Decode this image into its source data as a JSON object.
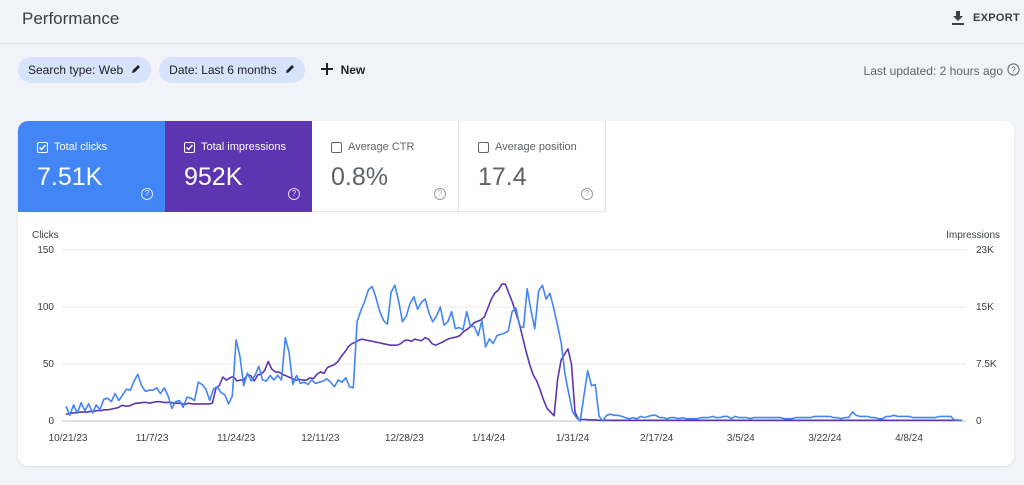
{
  "header": {
    "title": "Performance",
    "export_label": "EXPORT"
  },
  "filters": {
    "search_type": "Search type: Web",
    "date": "Date: Last 6 months",
    "new_label": "New"
  },
  "last_updated": "Last updated: 2 hours ago",
  "metrics": [
    {
      "label": "Total clicks",
      "value": "7.51K",
      "checked": true
    },
    {
      "label": "Total impressions",
      "value": "952K",
      "checked": true
    },
    {
      "label": "Average CTR",
      "value": "0.8%",
      "checked": false
    },
    {
      "label": "Average position",
      "value": "17.4",
      "checked": false
    }
  ],
  "colors": {
    "clicks": "#4285f4",
    "impressions": "#5e35b1",
    "chip": "#d7e3fb"
  },
  "chart_data": {
    "type": "line",
    "left_axis_label": "Clicks",
    "right_axis_label": "Impressions",
    "left_ticks": [
      "150",
      "100",
      "50",
      "0"
    ],
    "right_ticks": [
      "23K",
      "15K",
      "7.5K",
      "0"
    ],
    "left_range": [
      0,
      150
    ],
    "right_range": [
      0,
      23000
    ],
    "x_ticks": [
      "10/21/23",
      "11/7/23",
      "11/24/23",
      "12/11/23",
      "12/28/23",
      "1/14/24",
      "1/31/24",
      "2/17/24",
      "3/5/24",
      "3/22/24",
      "4/8/24"
    ],
    "grid": true,
    "series": [
      {
        "name": "Total clicks",
        "axis": "left",
        "values": [
          13,
          5,
          14,
          7,
          16,
          9,
          15,
          7,
          14,
          10,
          19,
          20,
          17,
          24,
          18,
          23,
          28,
          27,
          35,
          41,
          31,
          26,
          27,
          27,
          29,
          24,
          29,
          22,
          11,
          17,
          18,
          12,
          21,
          20,
          18,
          34,
          32,
          28,
          18,
          28,
          30,
          25,
          23,
          15,
          22,
          71,
          57,
          31,
          42,
          35,
          40,
          48,
          36,
          35,
          40,
          36,
          40,
          36,
          73,
          60,
          32,
          40,
          33,
          34,
          32,
          36,
          33,
          34,
          35,
          37,
          34,
          30,
          36,
          34,
          38,
          30,
          29,
          87,
          97,
          105,
          115,
          118,
          108,
          96,
          88,
          85,
          113,
          119,
          105,
          87,
          92,
          103,
          109,
          98,
          104,
          107,
          95,
          87,
          92,
          100,
          84,
          87,
          96,
          81,
          82,
          80,
          96,
          83,
          83,
          75,
          88,
          65,
          72,
          68,
          75,
          76,
          77,
          79,
          96,
          99,
          83,
          82,
          116,
          97,
          81,
          114,
          119,
          107,
          112,
          99,
          84,
          68,
          41,
          24,
          8,
          3,
          0,
          22,
          44,
          31,
          32,
          4,
          0,
          5,
          6,
          5,
          5,
          4,
          3,
          2,
          3,
          2,
          4,
          3,
          4,
          5,
          5,
          3,
          3,
          2,
          3,
          3,
          2,
          3,
          2,
          2,
          2,
          2,
          3,
          3,
          3,
          4,
          3,
          3,
          4,
          4,
          2,
          4,
          3,
          3,
          3,
          2,
          3,
          3,
          3,
          3,
          3,
          3,
          3,
          3,
          2,
          2,
          2,
          3,
          3,
          3,
          3,
          3,
          4,
          4,
          4,
          4,
          4,
          3,
          3,
          2,
          3,
          3,
          8,
          5,
          4,
          4,
          4,
          3,
          3,
          2,
          2,
          4,
          4,
          5,
          4,
          4,
          4,
          4,
          3,
          3,
          3,
          3,
          3,
          3,
          3,
          4,
          4,
          4,
          4,
          1,
          1,
          0
        ]
      },
      {
        "name": "Total impressions",
        "axis": "right",
        "values": [
          900,
          1000,
          1100,
          1100,
          1200,
          1200,
          1200,
          1300,
          1300,
          1400,
          1400,
          1500,
          1500,
          1600,
          1700,
          1800,
          2100,
          2000,
          2000,
          2200,
          2400,
          2400,
          2500,
          2500,
          2400,
          2500,
          2600,
          2600,
          2500,
          2500,
          2500,
          2400,
          2400,
          2400,
          2200,
          2400,
          2300,
          2300,
          2300,
          2300,
          2300,
          2300,
          2400,
          4400,
          4800,
          5900,
          5500,
          5800,
          6000,
          5400,
          5500,
          5500,
          6200,
          6100,
          5400,
          6200,
          6300,
          6800,
          8000,
          7000,
          6600,
          6600,
          6300,
          6100,
          5900,
          5700,
          5500,
          5600,
          5500,
          5500,
          5800,
          5700,
          6300,
          6600,
          6400,
          7200,
          7400,
          7600,
          8000,
          8700,
          9300,
          10000,
          10400,
          10600,
          10900,
          11000,
          10900,
          10800,
          10700,
          10600,
          10500,
          10400,
          10300,
          10200,
          10200,
          10200,
          10400,
          10800,
          10900,
          10700,
          11000,
          10900,
          10800,
          11200,
          11000,
          10400,
          10200,
          10400,
          10600,
          10900,
          11100,
          11200,
          11300,
          11500,
          12000,
          12300,
          12700,
          13200,
          13400,
          13600,
          14000,
          15200,
          16400,
          17200,
          17600,
          18400,
          18400,
          17200,
          16000,
          14600,
          13200,
          11200,
          9300,
          7600,
          6200,
          5400,
          4200,
          2800,
          1700,
          1200,
          700,
          5600,
          8200,
          9000,
          9700,
          7600,
          1200,
          200,
          200,
          200,
          150,
          150,
          150,
          100,
          100,
          100,
          100,
          100,
          100,
          100,
          100,
          100,
          100,
          100,
          100,
          100,
          100,
          100,
          100,
          100,
          100,
          100,
          100,
          100,
          100,
          100,
          100,
          100,
          100,
          100,
          100,
          100,
          100,
          100,
          100,
          100,
          100,
          100,
          100,
          100,
          100,
          100,
          100,
          100,
          100,
          100,
          100,
          100,
          100,
          100,
          100,
          100,
          100,
          100,
          100,
          100,
          100,
          100,
          100,
          100,
          100,
          100,
          100,
          100,
          100,
          100,
          100,
          100,
          100,
          100,
          100,
          100,
          100,
          100,
          100,
          100,
          100,
          100,
          100,
          100,
          100,
          100,
          100,
          100,
          100,
          100,
          100,
          100,
          100,
          100,
          100,
          100,
          100,
          100,
          100,
          100,
          100,
          100,
          100,
          100,
          100,
          100,
          100,
          100,
          100,
          100,
          100,
          100
        ]
      }
    ]
  }
}
